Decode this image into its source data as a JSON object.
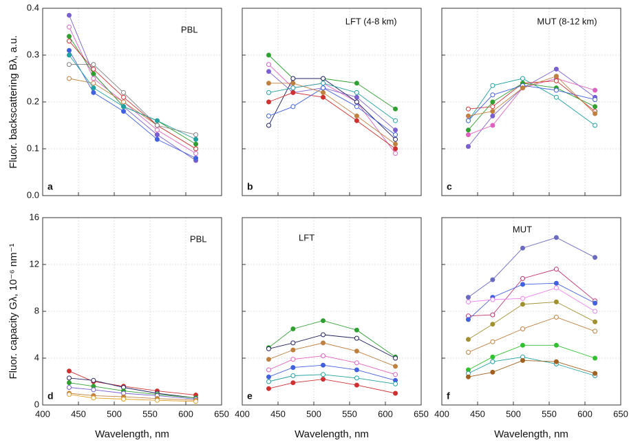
{
  "chart_data": [
    {
      "type": "line",
      "panel": "a",
      "annotation": "PBL",
      "ylabel": "Fluor. backscattering Bλ, a.u.",
      "x": [
        437,
        471,
        513,
        560,
        614
      ],
      "xlim": [
        400,
        650
      ],
      "xticks": [
        400,
        450,
        500,
        550,
        600,
        650
      ],
      "ylim": [
        0,
        0.4
      ],
      "yticks": [
        {
          "value": 0,
          "label": "0.0"
        },
        0.1,
        0.2,
        0.3,
        0.4
      ],
      "grid": true,
      "xtick_labels": false,
      "ytick_labels": true,
      "series": [
        {
          "color": "#7a5fd0",
          "values": [
            0.385,
            0.26,
            0.19,
            0.13,
            0.075
          ]
        },
        {
          "color": "#e060c0",
          "values": [
            0.36,
            0.25,
            0.2,
            0.14,
            0.09
          ]
        },
        {
          "color": "#30a030",
          "values": [
            0.34,
            0.26,
            0.19,
            0.16,
            0.11
          ]
        },
        {
          "color": "#c08040",
          "values": [
            0.25,
            0.24,
            0.2,
            0.15,
            0.1
          ]
        },
        {
          "color": "#4060e0",
          "values": [
            0.31,
            0.22,
            0.18,
            0.12,
            0.08
          ]
        },
        {
          "color": "#d03030",
          "values": [
            0.33,
            0.27,
            0.21,
            0.15,
            0.1
          ]
        },
        {
          "color": "#20a0a0",
          "values": [
            0.3,
            0.23,
            0.19,
            0.16,
            0.12
          ]
        },
        {
          "color": "#808080",
          "values": [
            0.28,
            0.28,
            0.22,
            0.15,
            0.13
          ]
        }
      ]
    },
    {
      "type": "line",
      "panel": "b",
      "annotation": "LFT (4-8 km)",
      "x": [
        437,
        471,
        513,
        560,
        614
      ],
      "xlim": [
        400,
        650
      ],
      "xticks": [
        400,
        450,
        500,
        550,
        600,
        650
      ],
      "ylim": [
        0,
        0.4
      ],
      "yticks": [
        0,
        0.1,
        0.2,
        0.3,
        0.4
      ],
      "grid": true,
      "xtick_labels": false,
      "ytick_labels": false,
      "series": [
        {
          "color": "#30a030",
          "values": [
            0.3,
            0.25,
            0.25,
            0.24,
            0.185
          ]
        },
        {
          "color": "#e060c0",
          "values": [
            0.28,
            0.23,
            0.24,
            0.2,
            0.09
          ]
        },
        {
          "color": "#7a5fd0",
          "values": [
            0.265,
            0.22,
            0.23,
            0.21,
            0.14
          ]
        },
        {
          "color": "#202060",
          "values": [
            0.15,
            0.25,
            0.25,
            0.2,
            0.12
          ]
        },
        {
          "color": "#d03030",
          "values": [
            0.2,
            0.22,
            0.21,
            0.16,
            0.1
          ]
        },
        {
          "color": "#4060e0",
          "values": [
            0.17,
            0.19,
            0.23,
            0.19,
            0.13
          ]
        },
        {
          "color": "#c08040",
          "values": [
            0.24,
            0.24,
            0.22,
            0.17,
            0.11
          ]
        },
        {
          "color": "#20a0a0",
          "values": [
            0.22,
            0.23,
            0.24,
            0.22,
            0.16
          ]
        }
      ]
    },
    {
      "type": "line",
      "panel": "c",
      "annotation": "MUT (8-12 km)",
      "x": [
        437,
        471,
        513,
        560,
        614
      ],
      "xlim": [
        400,
        650
      ],
      "xticks": [
        400,
        450,
        500,
        550,
        600,
        650
      ],
      "ylim": [
        0,
        0.4
      ],
      "yticks": [
        0,
        0.1,
        0.2,
        0.3,
        0.4
      ],
      "grid": true,
      "xtick_labels": false,
      "ytick_labels": false,
      "series": [
        {
          "color": "#7a5fd0",
          "values": [
            0.105,
            0.17,
            0.23,
            0.27,
            0.21
          ]
        },
        {
          "color": "#20a0a0",
          "values": [
            0.16,
            0.235,
            0.25,
            0.21,
            0.15
          ]
        },
        {
          "color": "#e060c0",
          "values": [
            0.13,
            0.15,
            0.23,
            0.25,
            0.225
          ]
        },
        {
          "color": "#d03030",
          "values": [
            0.185,
            0.19,
            0.24,
            0.245,
            0.18
          ]
        },
        {
          "color": "#30a030",
          "values": [
            0.14,
            0.2,
            0.24,
            0.23,
            0.19
          ]
        },
        {
          "color": "#4060e0",
          "values": [
            0.16,
            0.215,
            0.235,
            0.225,
            0.205
          ]
        },
        {
          "color": "#c08040",
          "values": [
            0.17,
            0.18,
            0.23,
            0.255,
            0.175
          ]
        }
      ]
    },
    {
      "type": "line",
      "panel": "d",
      "annotation": "PBL",
      "ylabel": "Fluor. capacity Gλ, 10⁻⁶ nm⁻¹",
      "xlabel": "Wavelength, nm",
      "x": [
        437,
        471,
        513,
        560,
        614
      ],
      "xlim": [
        400,
        650
      ],
      "xticks": [
        400,
        450,
        500,
        550,
        600,
        650
      ],
      "ylim": [
        0,
        16
      ],
      "yticks": [
        0,
        4,
        8,
        12,
        16
      ],
      "grid": true,
      "xtick_labels": true,
      "ytick_labels": true,
      "series": [
        {
          "color": "#d03030",
          "values": [
            2.9,
            2.0,
            1.6,
            1.2,
            0.85
          ]
        },
        {
          "color": "#202060",
          "values": [
            2.3,
            2.1,
            1.5,
            1.0,
            0.6
          ]
        },
        {
          "color": "#30a030",
          "values": [
            1.9,
            1.6,
            1.2,
            0.9,
            0.6
          ]
        },
        {
          "color": "#7a5fd0",
          "values": [
            1.5,
            1.3,
            1.0,
            0.8,
            0.5
          ]
        },
        {
          "color": "#c08040",
          "values": [
            1.0,
            0.8,
            0.7,
            0.55,
            0.4
          ]
        },
        {
          "color": "#e0a020",
          "values": [
            0.9,
            0.6,
            0.5,
            0.4,
            0.3
          ]
        }
      ]
    },
    {
      "type": "line",
      "panel": "e",
      "annotation": "LFT",
      "xlabel": "Wavelength, nm",
      "x": [
        437,
        471,
        513,
        560,
        614
      ],
      "xlim": [
        400,
        650
      ],
      "xticks": [
        400,
        450,
        500,
        550,
        600,
        650
      ],
      "ylim": [
        0,
        16
      ],
      "yticks": [
        0,
        4,
        8,
        12,
        16
      ],
      "grid": true,
      "xtick_labels": true,
      "ytick_labels": false,
      "series": [
        {
          "color": "#30a030",
          "values": [
            4.9,
            6.5,
            7.2,
            6.4,
            4.1
          ]
        },
        {
          "color": "#202060",
          "values": [
            4.8,
            5.3,
            6.0,
            5.7,
            4.0
          ]
        },
        {
          "color": "#c08040",
          "values": [
            3.9,
            4.7,
            5.3,
            4.6,
            3.3
          ]
        },
        {
          "color": "#e060c0",
          "values": [
            3.0,
            3.9,
            4.2,
            3.6,
            2.6
          ]
        },
        {
          "color": "#4060e0",
          "values": [
            2.4,
            3.2,
            3.4,
            3.0,
            2.1
          ]
        },
        {
          "color": "#20a0a0",
          "values": [
            2.0,
            2.5,
            2.6,
            2.3,
            1.8
          ]
        },
        {
          "color": "#d03030",
          "values": [
            1.4,
            1.9,
            2.2,
            1.7,
            1.0
          ]
        }
      ]
    },
    {
      "type": "line",
      "panel": "f",
      "annotation": "MUT",
      "xlabel": "Wavelength, nm",
      "x": [
        437,
        471,
        513,
        560,
        614
      ],
      "xlim": [
        400,
        650
      ],
      "xticks": [
        400,
        450,
        500,
        550,
        600,
        650
      ],
      "ylim": [
        0,
        16
      ],
      "yticks": [
        0,
        4,
        8,
        12,
        16
      ],
      "grid": true,
      "xtick_labels": true,
      "ytick_labels": false,
      "series": [
        {
          "color": "#6a6ac0",
          "values": [
            9.2,
            10.7,
            13.4,
            14.3,
            12.6
          ]
        },
        {
          "color": "#c03070",
          "values": [
            7.6,
            7.7,
            10.8,
            11.6,
            8.9
          ]
        },
        {
          "color": "#4060e0",
          "values": [
            7.3,
            9.2,
            10.3,
            10.4,
            8.7
          ]
        },
        {
          "color": "#f080f0",
          "values": [
            8.8,
            9.0,
            9.1,
            10.0,
            8.0
          ]
        },
        {
          "color": "#a09030",
          "values": [
            5.6,
            6.9,
            8.6,
            8.8,
            7.1
          ]
        },
        {
          "color": "#c08040",
          "values": [
            4.5,
            5.4,
            6.5,
            7.5,
            6.3
          ]
        },
        {
          "color": "#30c030",
          "values": [
            3.0,
            4.1,
            5.1,
            5.1,
            4.0
          ]
        },
        {
          "color": "#20a0a0",
          "values": [
            2.7,
            3.7,
            4.1,
            3.5,
            2.5
          ]
        },
        {
          "color": "#a06020",
          "values": [
            2.4,
            2.8,
            3.8,
            3.7,
            2.7
          ]
        }
      ]
    }
  ]
}
